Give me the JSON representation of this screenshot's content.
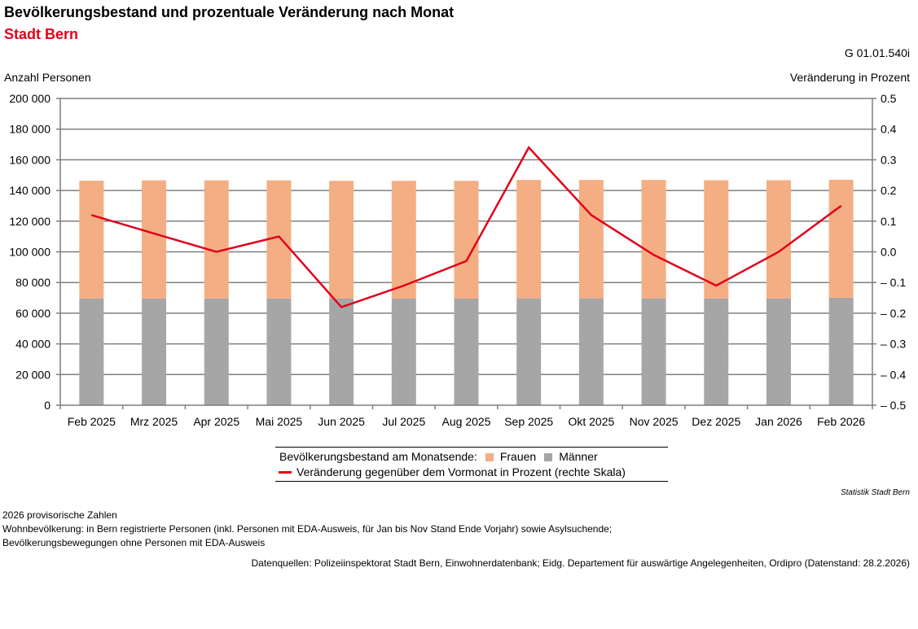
{
  "title": "Bevölkerungsbestand und prozentuale Veränderung nach Monat",
  "subtitle": "Stadt Bern",
  "graphic_code": "G 01.01.540i",
  "colors": {
    "frauen": "#f4ae84",
    "maenner": "#a6a6a6",
    "line": "#e2001a",
    "grid": "#7f7f7f",
    "accent_red": "#e2001a"
  },
  "legend": {
    "prefix": "Bevölkerungsbestand am Monatsende:",
    "frauen": "Frauen",
    "maenner": "Männer",
    "line": "Veränderung gegenüber dem Vormonat in Prozent (rechte Skala)"
  },
  "source_org": "Statistik Stadt Bern",
  "notes": [
    "2026 provisorische Zahlen",
    "Wohnbevölkerung: in Bern registrierte Personen (inkl. Personen mit EDA-Ausweis, für Jan bis Nov Stand Ende Vorjahr) sowie Asylsuchende;",
    "Bevölkerungsbewegungen ohne Personen mit EDA-Ausweis"
  ],
  "sources": "Datenquellen: Polizeiinspektorat Stadt Bern, Einwohnerdatenbank; Eidg. Departement für auswärtige Angelegenheiten, Ordipro (Datenstand: 28.2.2026)",
  "chart_data": {
    "type": "bar",
    "stacked": true,
    "title": "Bevölkerungsbestand und prozentuale Veränderung nach Monat",
    "ylabel": "Anzahl Personen",
    "y2label": "Veränderung in Prozent",
    "ylim": [
      0,
      200000
    ],
    "y2lim": [
      -0.5,
      0.5
    ],
    "yticks": [
      "0",
      "20 000",
      "40 000",
      "60 000",
      "80 000",
      "100 000",
      "120 000",
      "140 000",
      "160 000",
      "180 000",
      "200 000"
    ],
    "y2ticks": [
      "– 0.5",
      "– 0.4",
      "– 0.3",
      "– 0.2",
      "– 0.1",
      "0.0",
      "0.1",
      "0.2",
      "0.3",
      "0.4",
      "0.5"
    ],
    "ytick_values": [
      0,
      20000,
      40000,
      60000,
      80000,
      100000,
      120000,
      140000,
      160000,
      180000,
      200000
    ],
    "y2tick_values": [
      -0.5,
      -0.4,
      -0.3,
      -0.2,
      -0.1,
      0.0,
      0.1,
      0.2,
      0.3,
      0.4,
      0.5
    ],
    "grid": true,
    "legend_position": "bottom",
    "categories": [
      "Feb 2025",
      "Mrz 2025",
      "Apr 2025",
      "Mai 2025",
      "Jun 2025",
      "Jul 2025",
      "Aug 2025",
      "Sep 2025",
      "Okt 2025",
      "Nov 2025",
      "Dez 2025",
      "Jan 2026",
      "Feb 2026"
    ],
    "series": [
      {
        "name": "Männer",
        "type": "bar",
        "axis": "left",
        "values": [
          69600,
          69600,
          69600,
          69600,
          69500,
          69500,
          69500,
          69700,
          69700,
          69700,
          69600,
          69600,
          70100
        ]
      },
      {
        "name": "Frauen",
        "type": "bar",
        "axis": "left",
        "values": [
          76800,
          77000,
          77000,
          77000,
          76800,
          76800,
          76800,
          77200,
          77200,
          77200,
          77100,
          77100,
          76900
        ]
      },
      {
        "name": "Veränderung gegenüber dem Vormonat in Prozent (rechte Skala)",
        "type": "line",
        "axis": "right",
        "values": [
          0.12,
          0.06,
          0.0,
          0.05,
          -0.18,
          -0.11,
          -0.03,
          0.34,
          0.12,
          -0.01,
          -0.11,
          0.0,
          0.15
        ]
      }
    ]
  }
}
